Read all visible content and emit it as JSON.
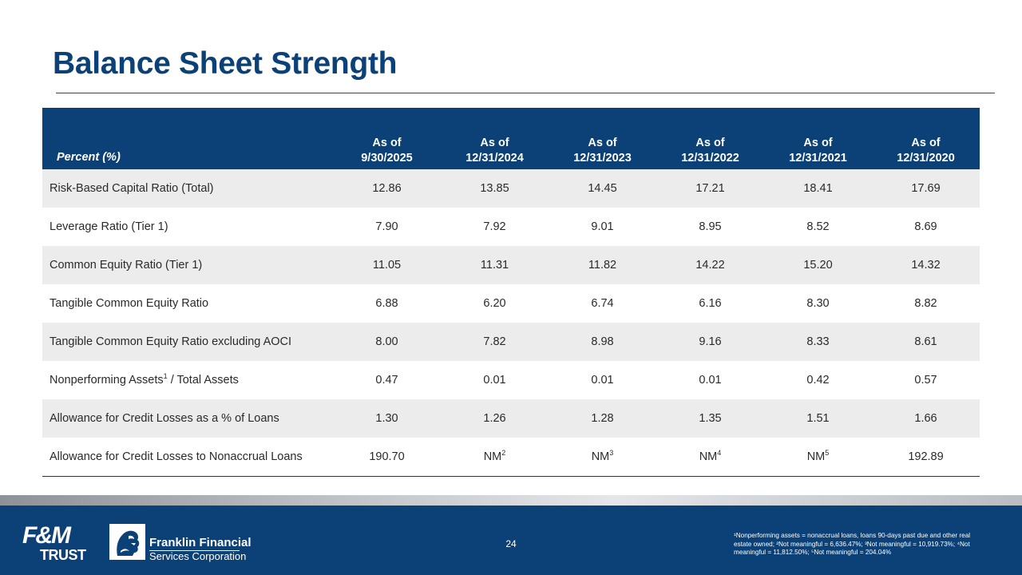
{
  "title": "Balance Sheet Strength",
  "table": {
    "label_header": "Percent (%)",
    "columns": [
      {
        "line1": "As of",
        "line2": "9/30/2025"
      },
      {
        "line1": "As of",
        "line2": "12/31/2024"
      },
      {
        "line1": "As of",
        "line2": "12/31/2023"
      },
      {
        "line1": "As of",
        "line2": "12/31/2022"
      },
      {
        "line1": "As of",
        "line2": "12/31/2021"
      },
      {
        "line1": "As of",
        "line2": "12/31/2020"
      }
    ],
    "rows": [
      {
        "label": "Risk-Based Capital Ratio (Total)",
        "values": [
          "12.86",
          "13.85",
          "14.45",
          "17.21",
          "18.41",
          "17.69"
        ]
      },
      {
        "label": "Leverage Ratio (Tier 1)",
        "values": [
          "7.90",
          "7.92",
          "9.01",
          "8.95",
          "8.52",
          "8.69"
        ]
      },
      {
        "label": "Common Equity Ratio (Tier 1)",
        "values": [
          "11.05",
          "11.31",
          "11.82",
          "14.22",
          "15.20",
          "14.32"
        ]
      },
      {
        "label": "Tangible Common Equity Ratio",
        "values": [
          "6.88",
          "6.20",
          "6.74",
          "6.16",
          "8.30",
          "8.82"
        ]
      },
      {
        "label": "Tangible Common Equity Ratio excluding AOCI",
        "values": [
          "8.00",
          "7.82",
          "8.98",
          "9.16",
          "8.33",
          "8.61"
        ]
      },
      {
        "label": "Nonperforming Assets",
        "label_sup": "1",
        "label_suffix": " / Total Assets",
        "values": [
          "0.47",
          "0.01",
          "0.01",
          "0.01",
          "0.42",
          "0.57"
        ]
      },
      {
        "label": "Allowance for Credit Losses as a % of Loans",
        "values": [
          "1.30",
          "1.26",
          "1.28",
          "1.35",
          "1.51",
          "1.66"
        ]
      },
      {
        "label": "Allowance for Credit Losses to Nonaccrual Loans",
        "values": [
          "190.70",
          "NM",
          "NM",
          "NM",
          "NM",
          "192.89"
        ],
        "value_sups": [
          "",
          "2",
          "3",
          "4",
          "5",
          ""
        ]
      }
    ]
  },
  "footer": {
    "fm_logo_top": "F&M",
    "fm_logo_bottom": "TRUST",
    "company_line1": "Franklin Financial",
    "company_line2": "Services Corporation",
    "page_number": "24",
    "footnotes": "¹Nonperforming assets = nonaccrual loans, loans 90-days past due and other real estate owned; ²Not meaningful = 6,636.47%; ³Not meaningful = 10,919.73%; ⁴Not meaningful = 11,812.50%; ⁵Not meaningful = 204.04%"
  },
  "colors": {
    "brand_blue": "#0b4177",
    "row_shade": "#ececec"
  }
}
